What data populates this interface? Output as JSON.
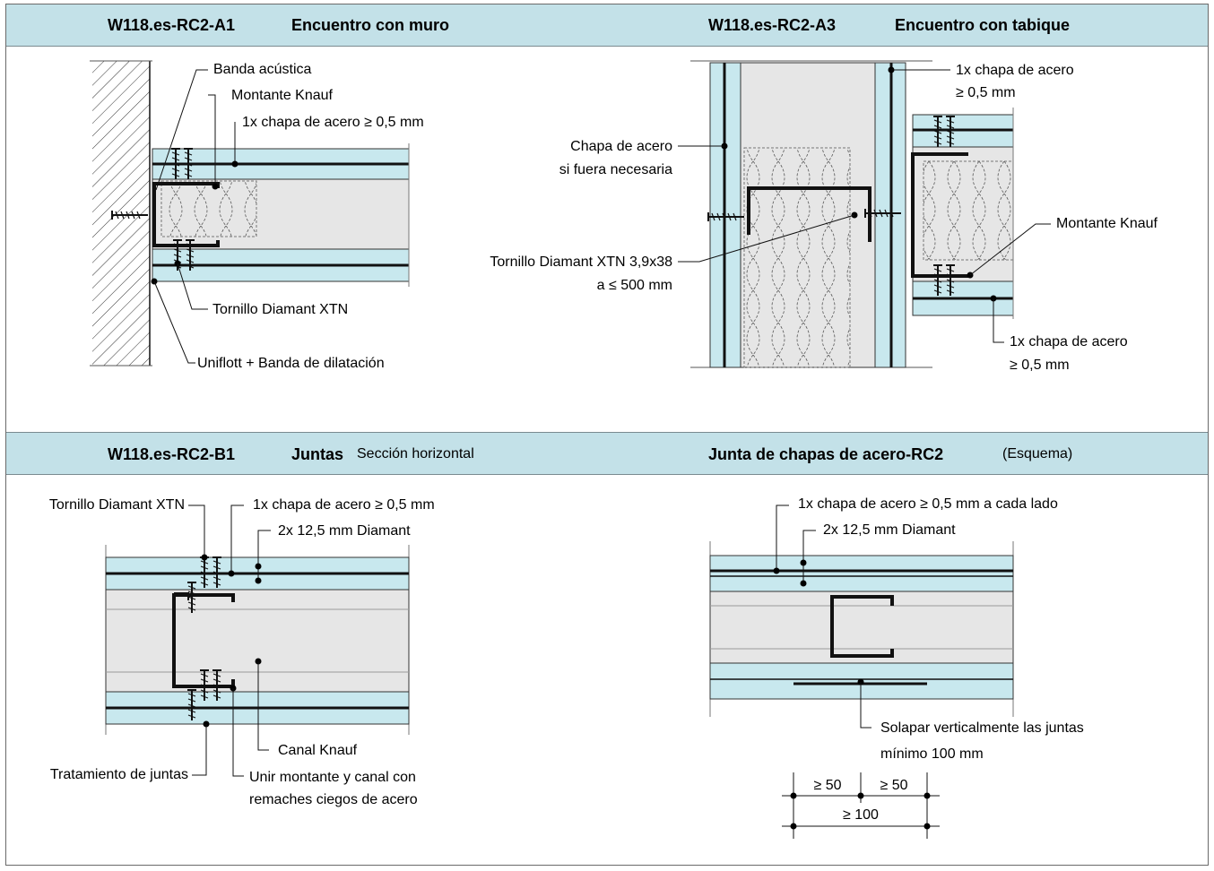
{
  "panels": {
    "a1": {
      "code": "W118.es-RC2-A1",
      "title": "Encuentro con muro"
    },
    "a3": {
      "code": "W118.es-RC2-A3",
      "title": "Encuentro con tabique"
    },
    "b1": {
      "code": "W118.es-RC2-B1",
      "title": "Juntas",
      "subtitle": "Sección horizontal"
    },
    "scheme": {
      "title": "Junta de chapas de acero-RC2",
      "subtitle": "(Esquema)"
    }
  },
  "labels": {
    "a1": {
      "banda": "Banda acústica",
      "montante": "Montante Knauf",
      "chapa": "1x chapa de acero ≥ 0,5 mm",
      "tornillo": "Tornillo Diamant XTN",
      "uniflott": "Uniflott + Banda de dilatación"
    },
    "a3": {
      "chapa_top_1": "1x chapa de acero",
      "chapa_top_2": "≥ 0,5 mm",
      "chapa_opt_1": "Chapa de acero",
      "chapa_opt_2": "si fuera necesaria",
      "tornillo_1": "Tornillo Diamant XTN 3,9x38",
      "tornillo_2": "a ≤ 500 mm",
      "montante": "Montante Knauf",
      "chapa_bot_1": "1x chapa de acero",
      "chapa_bot_2": "≥ 0,5 mm"
    },
    "b1": {
      "tornillo": "Tornillo Diamant XTN",
      "chapa": "1x chapa de acero ≥ 0,5 mm",
      "diamant": "2x 12,5 mm Diamant",
      "canal": "Canal Knauf",
      "tratamiento": "Tratamiento de juntas",
      "unir_1": "Unir montante y canal con",
      "unir_2": "remaches ciegos de acero"
    },
    "scheme": {
      "chapa": "1x chapa de acero ≥ 0,5 mm a cada lado",
      "diamant": "2x 12,5 mm Diamant",
      "solapar_1": "Solapar verticalmente las juntas",
      "solapar_2": "mínimo 100 mm",
      "dim_50a": "≥ 50",
      "dim_50b": "≥ 50",
      "dim_100": "≥ 100"
    }
  },
  "colors": {
    "header": "#c3e1e8",
    "board": "#c8e8ee",
    "core": "#e6e6e6"
  }
}
